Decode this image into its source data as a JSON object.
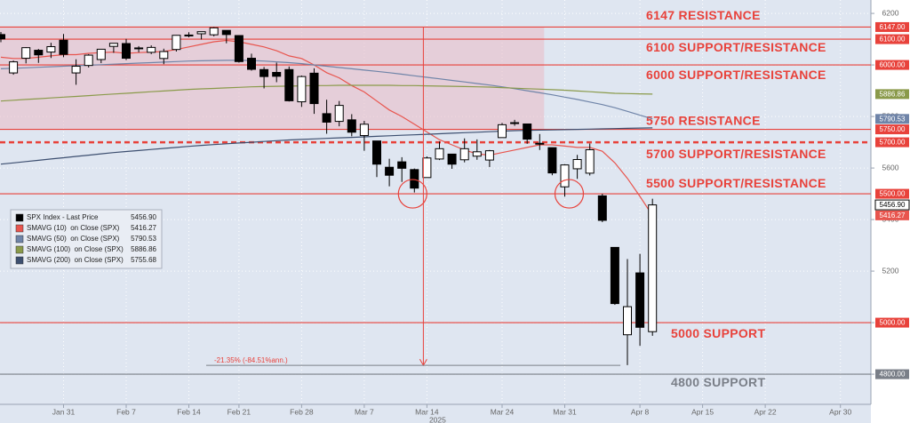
{
  "chart_data": {
    "type": "candlestick",
    "categories": [
      null,
      null,
      null,
      null,
      null,
      "Jan 31",
      null,
      null,
      null,
      null,
      "Feb 7",
      null,
      null,
      null,
      null,
      "Feb 14",
      null,
      null,
      null,
      "Feb 21",
      null,
      null,
      null,
      null,
      "Feb 28",
      null,
      null,
      null,
      null,
      "Mar 7",
      null,
      null,
      null,
      null,
      "Mar 14",
      null,
      null,
      null,
      null,
      null,
      "Mar 24",
      null,
      null,
      null,
      null,
      "Mar 31",
      null,
      null,
      null,
      null,
      null,
      "Apr 8",
      null,
      null,
      null,
      null,
      "Apr 15",
      null,
      null,
      null,
      null,
      "Apr 22",
      null,
      null,
      null,
      null,
      null,
      "Apr 30"
    ],
    "x_year_label": "2025",
    "candle_name": "SPX Index - Last Price",
    "candle_last_label": "5456.90",
    "candle_color": "#000000",
    "open": [
      6118,
      5969,
      6026,
      6057,
      6050,
      6096,
      5969,
      5998,
      6021,
      6072,
      6083,
      6065,
      6049,
      6025,
      6060,
      6116,
      6121,
      6117,
      6134,
      6114,
      6026,
      5982,
      5971,
      5982,
      5857,
      5968,
      5811,
      5781,
      5787,
      5726,
      5705,
      5603,
      5624,
      5594,
      5563,
      5635,
      5654,
      5632,
      5646,
      5631,
      5718,
      5775,
      5771,
      5696,
      5679,
      5527,
      5597,
      5580,
      5492,
      5292,
      4953,
      5193,
      4965,
      null,
      null,
      null,
      null,
      null,
      null,
      null,
      null,
      null,
      null,
      null,
      null,
      null,
      null,
      null
    ],
    "high": [
      6128,
      6017,
      6069,
      6062,
      6086,
      6120,
      6022,
      6042,
      6062,
      6084,
      6101,
      6073,
      6076,
      6063,
      6116,
      6127,
      6129,
      6147,
      6134,
      6115,
      6044,
      5992,
      6009,
      5994,
      5959,
      5987,
      5865,
      5860,
      5809,
      5783,
      5705,
      5636,
      5642,
      5598,
      5645,
      5703,
      5654,
      5715,
      5711,
      5670,
      5775,
      5787,
      5772,
      5732,
      5679,
      5615,
      5651,
      5695,
      5500,
      5292,
      5247,
      5267,
      5481,
      null,
      null,
      null,
      null,
      null,
      null,
      null,
      null,
      null,
      null,
      null,
      null,
      null,
      null,
      null
    ],
    "low": [
      6088,
      5962,
      6006,
      6008,
      6027,
      6030,
      5923,
      5990,
      6007,
      6047,
      6019,
      6049,
      6042,
      6003,
      6052,
      6107,
      6099,
      6111,
      6084,
      6009,
      5978,
      5909,
      5933,
      5858,
      5837,
      5810,
      5733,
      5762,
      5723,
      5667,
      5565,
      5529,
      5546,
      5505,
      5563,
      5631,
      5597,
      5622,
      5632,
      5604,
      5718,
      5764,
      5694,
      5670,
      5572,
      5489,
      5558,
      5571,
      5390,
      5069,
      4835,
      4910,
      4949,
      null,
      null,
      null,
      null,
      null,
      null,
      null,
      null,
      null,
      null,
      null,
      null,
      null,
      null,
      null
    ],
    "close": [
      6101,
      6012,
      6067,
      6039,
      6071,
      6041,
      5995,
      6038,
      6061,
      6084,
      6026,
      6066,
      6068,
      6052,
      6115,
      6115,
      6129,
      6144,
      6118,
      6013,
      5983,
      5955,
      5956,
      5861,
      5955,
      5850,
      5778,
      5843,
      5739,
      5770,
      5615,
      5572,
      5599,
      5522,
      5639,
      5675,
      5615,
      5675,
      5663,
      5667,
      5768,
      5776,
      5712,
      5693,
      5581,
      5612,
      5633,
      5671,
      5397,
      5074,
      5062,
      4982,
      5456.9,
      null,
      null,
      null,
      null,
      null,
      null,
      null,
      null,
      null,
      null,
      null,
      null,
      null,
      null,
      null
    ],
    "series": [
      {
        "name": "SMAVG (10)  on Close (SPX)",
        "color": "#e8554e",
        "last_label": "5416.27",
        "values": [
          6030,
          6025,
          6025,
          6030,
          6035,
          6040,
          6040,
          6045,
          6048,
          6050,
          6045,
          6048,
          6050,
          6052,
          6060,
          6070,
          6080,
          6090,
          6095,
          6090,
          6080,
          6070,
          6055,
          6035,
          6025,
          6000,
          5970,
          5950,
          5920,
          5895,
          5860,
          5825,
          5800,
          5770,
          5740,
          5710,
          5690,
          5670,
          5655,
          5650,
          5660,
          5670,
          5680,
          5690,
          5690,
          5685,
          5680,
          5680,
          5665,
          5620,
          5560,
          5490,
          5416.27,
          null,
          null,
          null,
          null,
          null,
          null,
          null,
          null,
          null,
          null,
          null,
          null,
          null,
          null,
          null
        ]
      },
      {
        "name": "SMAVG (50)  on Close (SPX)",
        "color": "#6f84a8",
        "last_label": "5790.53",
        "values": [
          5985,
          5987,
          5989,
          5991,
          5993,
          5995,
          5997,
          5999,
          6001,
          6003,
          6005,
          6007,
          6009,
          6011,
          6013,
          6015,
          6016,
          6017,
          6018,
          6018,
          6017,
          6015,
          6012,
          6009,
          6005,
          6000,
          5995,
          5990,
          5985,
          5980,
          5975,
          5970,
          5964,
          5958,
          5952,
          5946,
          5940,
          5934,
          5928,
          5922,
          5915,
          5908,
          5900,
          5892,
          5884,
          5875,
          5866,
          5856,
          5846,
          5834,
          5820,
          5805,
          5790.53,
          null,
          null,
          null,
          null,
          null,
          null,
          null,
          null,
          null,
          null,
          null,
          null,
          null,
          null,
          null
        ]
      },
      {
        "name": "SMAVG (100)  on Close (SPX)",
        "color": "#8a9a4a",
        "last_label": "5886.86",
        "values": [
          5860,
          5863,
          5866,
          5869,
          5872,
          5875,
          5878,
          5881,
          5884,
          5887,
          5890,
          5893,
          5896,
          5899,
          5902,
          5905,
          5907,
          5909,
          5911,
          5913,
          5915,
          5916,
          5917,
          5918,
          5919,
          5920,
          5920,
          5921,
          5921,
          5921,
          5921,
          5921,
          5920,
          5920,
          5919,
          5918,
          5917,
          5916,
          5915,
          5914,
          5912,
          5910,
          5908,
          5906,
          5904,
          5902,
          5899,
          5896,
          5893,
          5890,
          5889,
          5888,
          5886.86,
          null,
          null,
          null,
          null,
          null,
          null,
          null,
          null,
          null,
          null,
          null,
          null,
          null,
          null,
          null
        ]
      },
      {
        "name": "SMAVG (200)  on Close (SPX)",
        "color": "#3d4f70",
        "last_label": "5755.68",
        "values": [
          5615,
          5620,
          5625,
          5630,
          5635,
          5640,
          5645,
          5650,
          5655,
          5660,
          5664,
          5668,
          5672,
          5676,
          5680,
          5684,
          5688,
          5691,
          5694,
          5697,
          5700,
          5703,
          5706,
          5709,
          5711,
          5713,
          5715,
          5717,
          5719,
          5721,
          5723,
          5725,
          5727,
          5729,
          5731,
          5733,
          5735,
          5737,
          5739,
          5741,
          5743,
          5745,
          5746,
          5747,
          5748,
          5749,
          5750,
          5751,
          5752,
          5753,
          5754,
          5755,
          5755.68,
          null,
          null,
          null,
          null,
          null,
          null,
          null,
          null,
          null,
          null,
          null,
          null,
          null,
          null,
          null
        ]
      }
    ],
    "ylim": [
      4683,
      6252
    ],
    "yticks": [
      4800,
      5000,
      5200,
      5400,
      5600,
      5800,
      6000,
      6200
    ],
    "grid": true,
    "levels": [
      {
        "value": 6147,
        "label": "6147 RESISTANCE",
        "axis_label": "6147.00",
        "color": "#e8423b",
        "style": "solid"
      },
      {
        "value": 6100,
        "label": "6100 SUPPORT/RESISTANCE",
        "axis_label": "6100.00",
        "color": "#e8423b",
        "style": "solid"
      },
      {
        "value": 6000,
        "label": "6000 SUPPORT/RESISTANCE",
        "axis_label": "6000.00",
        "color": "#e8423b",
        "style": "solid"
      },
      {
        "value": 5750,
        "label": "5750 RESISTANCE",
        "axis_label": "5750.00",
        "color": "#e8423b",
        "style": "solid"
      },
      {
        "value": 5700,
        "label": "5700 SUPPORT/RESISTANCE",
        "axis_label": "5700.00",
        "color": "#e8423b",
        "style": "dashed"
      },
      {
        "value": 5500,
        "label": "5500 SUPPORT/RESISTANCE",
        "axis_label": "5500.00",
        "color": "#e8423b",
        "style": "solid"
      },
      {
        "value": 5000,
        "label": "5000 SUPPORT",
        "axis_label": "5000.00",
        "color": "#e8423b",
        "style": "solid"
      },
      {
        "value": 4800,
        "label": "4800 SUPPORT",
        "axis_label": "4800.00",
        "color": "#7a7f88",
        "style": "solid"
      }
    ],
    "drawdown_annotation": "-21.35% (-84.51%ann.)"
  }
}
